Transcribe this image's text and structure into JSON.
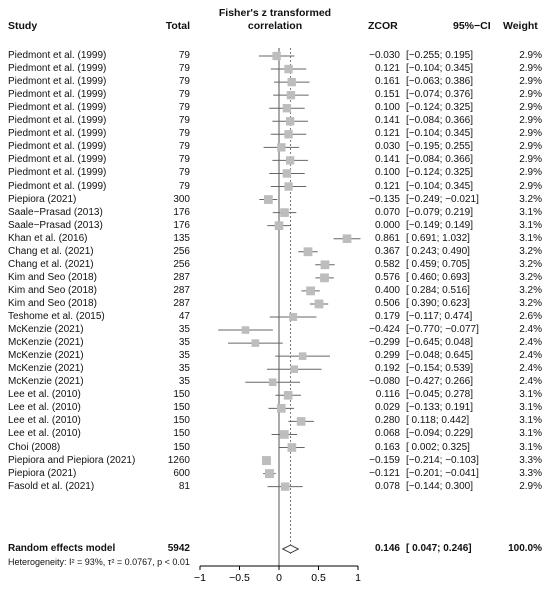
{
  "headers": {
    "study": "Study",
    "total": "Total",
    "plot_title_line1": "Fisher's z transformed",
    "plot_title_line2": "correlation",
    "zcor": "ZCOR",
    "ci": "95%−CI",
    "weight": "Weight"
  },
  "summary": {
    "label": "Random effects model",
    "total": "5942",
    "zcor": "0.146",
    "ci": "[ 0.047; 0.246]",
    "weight": "100.0%",
    "estimate": 0.146,
    "lower": 0.047,
    "upper": 0.246
  },
  "heterogeneity": "Heterogeneity: I² = 93%, τ² = 0.0767, p < 0.01",
  "chart_data": {
    "type": "forest",
    "title": "Fisher's z transformed correlation",
    "xlim": [
      -1,
      1
    ],
    "x_ticks": [
      "−1",
      "−0.5",
      "0",
      "0.5",
      "1"
    ],
    "x_tick_values": [
      -1,
      -0.5,
      0,
      0.5,
      1
    ],
    "reference_line": 0,
    "pooled_estimate_line": 0.146,
    "studies": [
      {
        "study": "Piedmont et al. (1999)",
        "total": "79",
        "zcor": "−0.030",
        "ci": "[−0.255; 0.195]",
        "weight": "2.9%",
        "est": -0.03,
        "lo": -0.255,
        "hi": 0.195,
        "w": 2.9
      },
      {
        "study": "Piedmont et al. (1999)",
        "total": "79",
        "zcor": "0.121",
        "ci": "[−0.104; 0.345]",
        "weight": "2.9%",
        "est": 0.121,
        "lo": -0.104,
        "hi": 0.345,
        "w": 2.9
      },
      {
        "study": "Piedmont et al. (1999)",
        "total": "79",
        "zcor": "0.161",
        "ci": "[−0.063; 0.386]",
        "weight": "2.9%",
        "est": 0.161,
        "lo": -0.063,
        "hi": 0.386,
        "w": 2.9
      },
      {
        "study": "Piedmont et al. (1999)",
        "total": "79",
        "zcor": "0.151",
        "ci": "[−0.074; 0.376]",
        "weight": "2.9%",
        "est": 0.151,
        "lo": -0.074,
        "hi": 0.376,
        "w": 2.9
      },
      {
        "study": "Piedmont et al. (1999)",
        "total": "79",
        "zcor": "0.100",
        "ci": "[−0.124; 0.325]",
        "weight": "2.9%",
        "est": 0.1,
        "lo": -0.124,
        "hi": 0.325,
        "w": 2.9
      },
      {
        "study": "Piedmont et al. (1999)",
        "total": "79",
        "zcor": "0.141",
        "ci": "[−0.084; 0.366]",
        "weight": "2.9%",
        "est": 0.141,
        "lo": -0.084,
        "hi": 0.366,
        "w": 2.9
      },
      {
        "study": "Piedmont et al. (1999)",
        "total": "79",
        "zcor": "0.121",
        "ci": "[−0.104; 0.345]",
        "weight": "2.9%",
        "est": 0.121,
        "lo": -0.104,
        "hi": 0.345,
        "w": 2.9
      },
      {
        "study": "Piedmont et al. (1999)",
        "total": "79",
        "zcor": "0.030",
        "ci": "[−0.195; 0.255]",
        "weight": "2.9%",
        "est": 0.03,
        "lo": -0.195,
        "hi": 0.255,
        "w": 2.9
      },
      {
        "study": "Piedmont et al. (1999)",
        "total": "79",
        "zcor": "0.141",
        "ci": "[−0.084; 0.366]",
        "weight": "2.9%",
        "est": 0.141,
        "lo": -0.084,
        "hi": 0.366,
        "w": 2.9
      },
      {
        "study": "Piedmont et al. (1999)",
        "total": "79",
        "zcor": "0.100",
        "ci": "[−0.124; 0.325]",
        "weight": "2.9%",
        "est": 0.1,
        "lo": -0.124,
        "hi": 0.325,
        "w": 2.9
      },
      {
        "study": "Piedmont et al. (1999)",
        "total": "79",
        "zcor": "0.121",
        "ci": "[−0.104; 0.345]",
        "weight": "2.9%",
        "est": 0.121,
        "lo": -0.104,
        "hi": 0.345,
        "w": 2.9
      },
      {
        "study": "Piepiora (2021)",
        "total": "300",
        "zcor": "−0.135",
        "ci": "[−0.249; −0.021]",
        "weight": "3.2%",
        "est": -0.135,
        "lo": -0.249,
        "hi": -0.021,
        "w": 3.2
      },
      {
        "study": "Saale−Prasad (2013)",
        "total": "176",
        "zcor": "0.070",
        "ci": "[−0.079; 0.219]",
        "weight": "3.1%",
        "est": 0.07,
        "lo": -0.079,
        "hi": 0.219,
        "w": 3.1
      },
      {
        "study": "Saale−Prasad (2013)",
        "total": "176",
        "zcor": "0.000",
        "ci": "[−0.149; 0.149]",
        "weight": "3.1%",
        "est": 0.0,
        "lo": -0.149,
        "hi": 0.149,
        "w": 3.1
      },
      {
        "study": "Khan et al. (2016)",
        "total": "135",
        "zcor": "0.861",
        "ci": "[ 0.691; 1.032]",
        "weight": "3.1%",
        "est": 0.861,
        "lo": 0.691,
        "hi": 1.032,
        "w": 3.1
      },
      {
        "study": "Chang et al. (2021)",
        "total": "256",
        "zcor": "0.367",
        "ci": "[ 0.243; 0.490]",
        "weight": "3.2%",
        "est": 0.367,
        "lo": 0.243,
        "hi": 0.49,
        "w": 3.2
      },
      {
        "study": "Chang et al. (2021)",
        "total": "256",
        "zcor": "0.582",
        "ci": "[ 0.459; 0.705]",
        "weight": "3.2%",
        "est": 0.582,
        "lo": 0.459,
        "hi": 0.705,
        "w": 3.2
      },
      {
        "study": "Kim and Seo (2018)",
        "total": "287",
        "zcor": "0.576",
        "ci": "[ 0.460; 0.693]",
        "weight": "3.2%",
        "est": 0.576,
        "lo": 0.46,
        "hi": 0.693,
        "w": 3.2
      },
      {
        "study": "Kim and Seo (2018)",
        "total": "287",
        "zcor": "0.400",
        "ci": "[ 0.284; 0.516]",
        "weight": "3.2%",
        "est": 0.4,
        "lo": 0.284,
        "hi": 0.516,
        "w": 3.2
      },
      {
        "study": "Kim and Seo (2018)",
        "total": "287",
        "zcor": "0.506",
        "ci": "[ 0.390; 0.623]",
        "weight": "3.2%",
        "est": 0.506,
        "lo": 0.39,
        "hi": 0.623,
        "w": 3.2
      },
      {
        "study": "Teshome et al. (2015)",
        "total": "47",
        "zcor": "0.179",
        "ci": "[−0.117; 0.474]",
        "weight": "2.6%",
        "est": 0.179,
        "lo": -0.117,
        "hi": 0.474,
        "w": 2.6
      },
      {
        "study": "McKenzie (2021)",
        "total": "35",
        "zcor": "−0.424",
        "ci": "[−0.770; −0.077]",
        "weight": "2.4%",
        "est": -0.424,
        "lo": -0.77,
        "hi": -0.077,
        "w": 2.4
      },
      {
        "study": "McKenzie (2021)",
        "total": "35",
        "zcor": "−0.299",
        "ci": "[−0.645; 0.048]",
        "weight": "2.4%",
        "est": -0.299,
        "lo": -0.645,
        "hi": 0.048,
        "w": 2.4
      },
      {
        "study": "McKenzie (2021)",
        "total": "35",
        "zcor": "0.299",
        "ci": "[−0.048; 0.645]",
        "weight": "2.4%",
        "est": 0.299,
        "lo": -0.048,
        "hi": 0.645,
        "w": 2.4
      },
      {
        "study": "McKenzie (2021)",
        "total": "35",
        "zcor": "0.192",
        "ci": "[−0.154; 0.539]",
        "weight": "2.4%",
        "est": 0.192,
        "lo": -0.154,
        "hi": 0.539,
        "w": 2.4
      },
      {
        "study": "McKenzie (2021)",
        "total": "35",
        "zcor": "−0.080",
        "ci": "[−0.427; 0.266]",
        "weight": "2.4%",
        "est": -0.08,
        "lo": -0.427,
        "hi": 0.266,
        "w": 2.4
      },
      {
        "study": "Lee et al. (2010)",
        "total": "150",
        "zcor": "0.116",
        "ci": "[−0.045; 0.278]",
        "weight": "3.1%",
        "est": 0.116,
        "lo": -0.045,
        "hi": 0.278,
        "w": 3.1
      },
      {
        "study": "Lee et al. (2010)",
        "total": "150",
        "zcor": "0.029",
        "ci": "[−0.133; 0.191]",
        "weight": "3.1%",
        "est": 0.029,
        "lo": -0.133,
        "hi": 0.191,
        "w": 3.1
      },
      {
        "study": "Lee et al. (2010)",
        "total": "150",
        "zcor": "0.280",
        "ci": "[ 0.118; 0.442]",
        "weight": "3.1%",
        "est": 0.28,
        "lo": 0.118,
        "hi": 0.442,
        "w": 3.1
      },
      {
        "study": "Lee et al. (2010)",
        "total": "150",
        "zcor": "0.068",
        "ci": "[−0.094; 0.229]",
        "weight": "3.1%",
        "est": 0.068,
        "lo": -0.094,
        "hi": 0.229,
        "w": 3.1
      },
      {
        "study": "Choi (2008)",
        "total": "150",
        "zcor": "0.163",
        "ci": "[ 0.002; 0.325]",
        "weight": "3.1%",
        "est": 0.163,
        "lo": 0.002,
        "hi": 0.325,
        "w": 3.1
      },
      {
        "study": "Piepiora and Piepiora (2021)",
        "total": "1260",
        "zcor": "−0.159",
        "ci": "[−0.214; −0.103]",
        "weight": "3.3%",
        "est": -0.159,
        "lo": -0.214,
        "hi": -0.103,
        "w": 3.3
      },
      {
        "study": "Piepiora (2021)",
        "total": "600",
        "zcor": "−0.121",
        "ci": "[−0.201; −0.041]",
        "weight": "3.3%",
        "est": -0.121,
        "lo": -0.201,
        "hi": -0.041,
        "w": 3.3
      },
      {
        "study": "Fasold et al. (2021)",
        "total": "81",
        "zcor": "0.078",
        "ci": "[−0.144; 0.300]",
        "weight": "2.9%",
        "est": 0.078,
        "lo": -0.144,
        "hi": 0.3,
        "w": 2.9
      }
    ],
    "colors": {
      "box": "#bdbdbd",
      "line": "#666666",
      "axis": "#000000",
      "diamond_fill": "#ffffff"
    }
  }
}
